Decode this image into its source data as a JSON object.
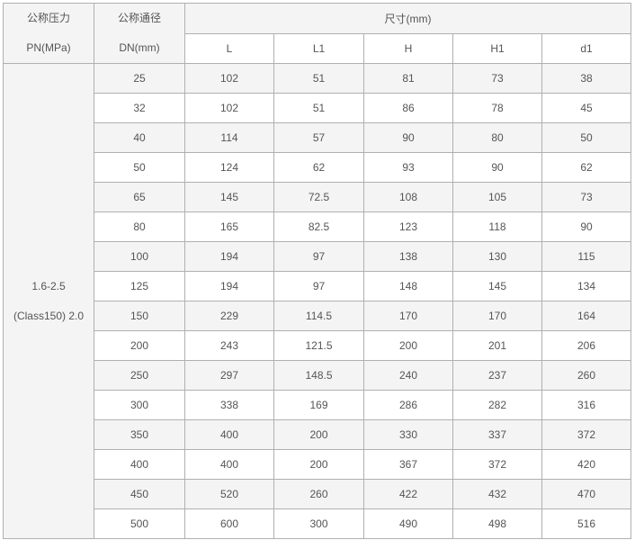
{
  "header": {
    "pn_line1": "公称压力",
    "pn_line2": "PN(MPa)",
    "dn_line1": "公称通径",
    "dn_line2": "DN(mm)",
    "dim_group": "尺寸(mm)",
    "columns": [
      "L",
      "L1",
      "H",
      "H1",
      "d1"
    ]
  },
  "pn_value_line1": "1.6-2.5",
  "pn_value_line2": "(Class150) 2.0",
  "rows": [
    [
      "25",
      "102",
      "51",
      "81",
      "73",
      "38"
    ],
    [
      "32",
      "102",
      "51",
      "86",
      "78",
      "45"
    ],
    [
      "40",
      "114",
      "57",
      "90",
      "80",
      "50"
    ],
    [
      "50",
      "124",
      "62",
      "93",
      "90",
      "62"
    ],
    [
      "65",
      "145",
      "72.5",
      "108",
      "105",
      "73"
    ],
    [
      "80",
      "165",
      "82.5",
      "123",
      "118",
      "90"
    ],
    [
      "100",
      "194",
      "97",
      "138",
      "130",
      "115"
    ],
    [
      "125",
      "194",
      "97",
      "148",
      "145",
      "134"
    ],
    [
      "150",
      "229",
      "114.5",
      "170",
      "170",
      "164"
    ],
    [
      "200",
      "243",
      "121.5",
      "200",
      "201",
      "206"
    ],
    [
      "250",
      "297",
      "148.5",
      "240",
      "237",
      "260"
    ],
    [
      "300",
      "338",
      "169",
      "286",
      "282",
      "316"
    ],
    [
      "350",
      "400",
      "200",
      "330",
      "337",
      "372"
    ],
    [
      "400",
      "400",
      "200",
      "367",
      "372",
      "420"
    ],
    [
      "450",
      "520",
      "260",
      "422",
      "432",
      "470"
    ],
    [
      "500",
      "600",
      "300",
      "490",
      "498",
      "516"
    ]
  ]
}
